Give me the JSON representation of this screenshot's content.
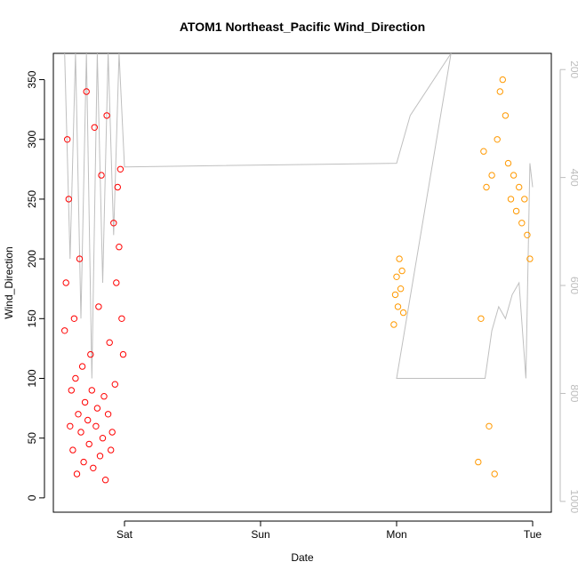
{
  "chart_data": {
    "type": "scatter",
    "title": "ATOM1 Northeast_Pacific Wind_Direction",
    "xlabel": "Date",
    "ylabel": "Wind_Direction",
    "x_ticks": [
      "Sat",
      "Sun",
      "Mon",
      "Tue"
    ],
    "y_ticks": [
      0,
      50,
      100,
      150,
      200,
      250,
      300,
      350
    ],
    "ylim": [
      -12,
      372
    ],
    "y2_ticks": [
      200,
      400,
      600,
      800,
      1000
    ],
    "y2lim": [
      1020,
      170
    ],
    "y2_reversed": true,
    "grid": false,
    "legend": "none",
    "colors": {
      "red_series": "#ff0000",
      "orange_series": "#ff9900",
      "line": "#bfbfbf",
      "right_axis": "#bdbdbd"
    },
    "series": [
      {
        "color": "#ff0000",
        "points": [
          [
            -0.44,
            140
          ],
          [
            -0.43,
            180
          ],
          [
            -0.42,
            300
          ],
          [
            -0.41,
            250
          ],
          [
            -0.4,
            60
          ],
          [
            -0.39,
            90
          ],
          [
            -0.38,
            40
          ],
          [
            -0.37,
            150
          ],
          [
            -0.36,
            100
          ],
          [
            -0.35,
            20
          ],
          [
            -0.34,
            70
          ],
          [
            -0.33,
            200
          ],
          [
            -0.32,
            55
          ],
          [
            -0.31,
            110
          ],
          [
            -0.3,
            30
          ],
          [
            -0.29,
            80
          ],
          [
            -0.28,
            340
          ],
          [
            -0.27,
            65
          ],
          [
            -0.26,
            45
          ],
          [
            -0.25,
            120
          ],
          [
            -0.24,
            90
          ],
          [
            -0.23,
            25
          ],
          [
            -0.22,
            310
          ],
          [
            -0.21,
            60
          ],
          [
            -0.2,
            75
          ],
          [
            -0.19,
            160
          ],
          [
            -0.18,
            35
          ],
          [
            -0.17,
            270
          ],
          [
            -0.16,
            50
          ],
          [
            -0.15,
            85
          ],
          [
            -0.14,
            15
          ],
          [
            -0.13,
            320
          ],
          [
            -0.12,
            70
          ],
          [
            -0.11,
            130
          ],
          [
            -0.1,
            40
          ],
          [
            -0.09,
            55
          ],
          [
            -0.08,
            230
          ],
          [
            -0.07,
            95
          ],
          [
            -0.06,
            180
          ],
          [
            -0.05,
            260
          ],
          [
            -0.04,
            210
          ],
          [
            -0.03,
            275
          ],
          [
            -0.02,
            150
          ],
          [
            -0.01,
            120
          ]
        ]
      },
      {
        "color": "#ff9900",
        "points": [
          [
            1.98,
            145
          ],
          [
            1.99,
            170
          ],
          [
            2.0,
            185
          ],
          [
            2.01,
            160
          ],
          [
            2.02,
            200
          ],
          [
            2.03,
            175
          ],
          [
            2.04,
            190
          ],
          [
            2.05,
            155
          ],
          [
            2.6,
            30
          ],
          [
            2.62,
            150
          ],
          [
            2.64,
            290
          ],
          [
            2.66,
            260
          ],
          [
            2.68,
            60
          ],
          [
            2.7,
            270
          ],
          [
            2.72,
            20
          ],
          [
            2.74,
            300
          ],
          [
            2.76,
            340
          ],
          [
            2.78,
            350
          ],
          [
            2.8,
            320
          ],
          [
            2.82,
            280
          ],
          [
            2.84,
            250
          ],
          [
            2.86,
            270
          ],
          [
            2.88,
            240
          ],
          [
            2.9,
            260
          ],
          [
            2.92,
            230
          ],
          [
            2.94,
            250
          ],
          [
            2.96,
            220
          ],
          [
            2.98,
            200
          ]
        ]
      }
    ],
    "line": {
      "color": "#bfbfbf",
      "points": [
        [
          -0.44,
          372
        ],
        [
          -0.4,
          200
        ],
        [
          -0.36,
          372
        ],
        [
          -0.32,
          150
        ],
        [
          -0.28,
          372
        ],
        [
          -0.24,
          100
        ],
        [
          -0.2,
          372
        ],
        [
          -0.16,
          180
        ],
        [
          -0.12,
          372
        ],
        [
          -0.08,
          220
        ],
        [
          -0.04,
          372
        ],
        [
          0.0,
          277
        ],
        [
          2.0,
          280
        ],
        [
          2.1,
          320
        ],
        [
          2.4,
          372
        ],
        [
          2.0,
          100
        ],
        [
          2.6,
          100
        ],
        [
          2.65,
          100
        ],
        [
          2.7,
          140
        ],
        [
          2.75,
          160
        ],
        [
          2.8,
          150
        ],
        [
          2.85,
          170
        ],
        [
          2.9,
          180
        ],
        [
          2.95,
          100
        ],
        [
          2.98,
          280
        ],
        [
          3.0,
          260
        ]
      ]
    }
  }
}
